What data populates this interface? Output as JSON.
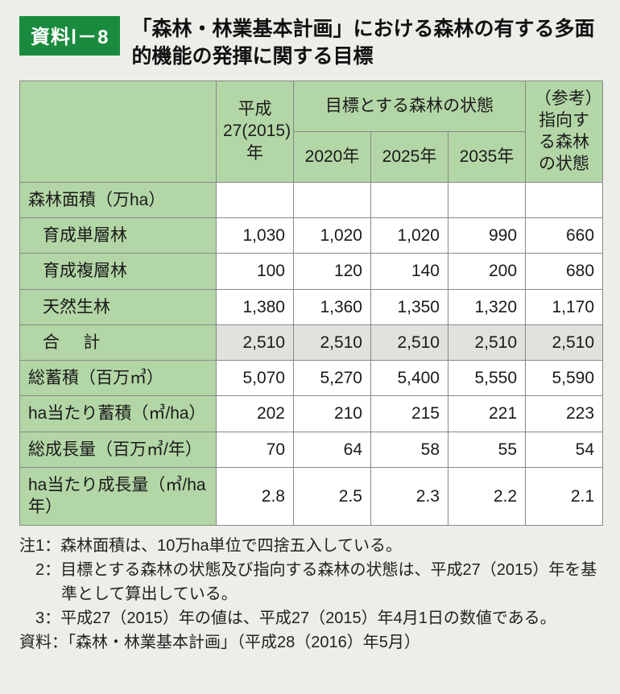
{
  "badge": "資料Ⅰ－8",
  "title": "「森林・林業基本計画」における森林の有する多面的機能の発揮に関する目標",
  "columns": {
    "blank": "",
    "y2015": "平成27(2015)年",
    "target_group": "目標とする森林の状態",
    "y2020": "2020年",
    "y2025": "2025年",
    "y2035": "2035年",
    "ref": "（参考）指向する森林の状態"
  },
  "sections": {
    "area_header": "森林面積（万ha）",
    "single": "育成単層林",
    "multi": "育成複層林",
    "natural": "天然生林",
    "total": "合　計",
    "stock": "総蓄積（百万㎥）",
    "stock_ha": "ha当たり蓄積（㎥/ha）",
    "growth": "総成長量（百万㎥/年）",
    "growth_ha": "ha当たり成長量（㎥/ha年）"
  },
  "data": {
    "single": [
      "1,030",
      "1,020",
      "1,020",
      "990",
      "660"
    ],
    "multi": [
      "100",
      "120",
      "140",
      "200",
      "680"
    ],
    "natural": [
      "1,380",
      "1,360",
      "1,350",
      "1,320",
      "1,170"
    ],
    "total": [
      "2,510",
      "2,510",
      "2,510",
      "2,510",
      "2,510"
    ],
    "stock": [
      "5,070",
      "5,270",
      "5,400",
      "5,550",
      "5,590"
    ],
    "stock_ha": [
      "202",
      "210",
      "215",
      "221",
      "223"
    ],
    "growth": [
      "70",
      "64",
      "58",
      "55",
      "54"
    ],
    "growth_ha": [
      "2.8",
      "2.5",
      "2.3",
      "2.2",
      "2.1"
    ]
  },
  "notes": {
    "n1": "注1：森林面積は、10万ha単位で四捨五入している。",
    "n2": "　2：目標とする森林の状態及び指向する森林の状態は、平成27（2015）年を基準として算出している。",
    "n3": "　3：平成27（2015）年の値は、平成27（2015）年4月1日の数値である。",
    "src": "資料：「森林・林業基本計画」（平成28（2016）年5月）"
  },
  "style": {
    "badge_bg": "#1a8b3e",
    "header_bg": "#b3d6a6",
    "shade_bg": "#e0e2db",
    "border": "#888888",
    "body_bg": "#eceee8",
    "title_fontsize": 25,
    "cell_fontsize": 21,
    "notes_fontsize": 20
  }
}
